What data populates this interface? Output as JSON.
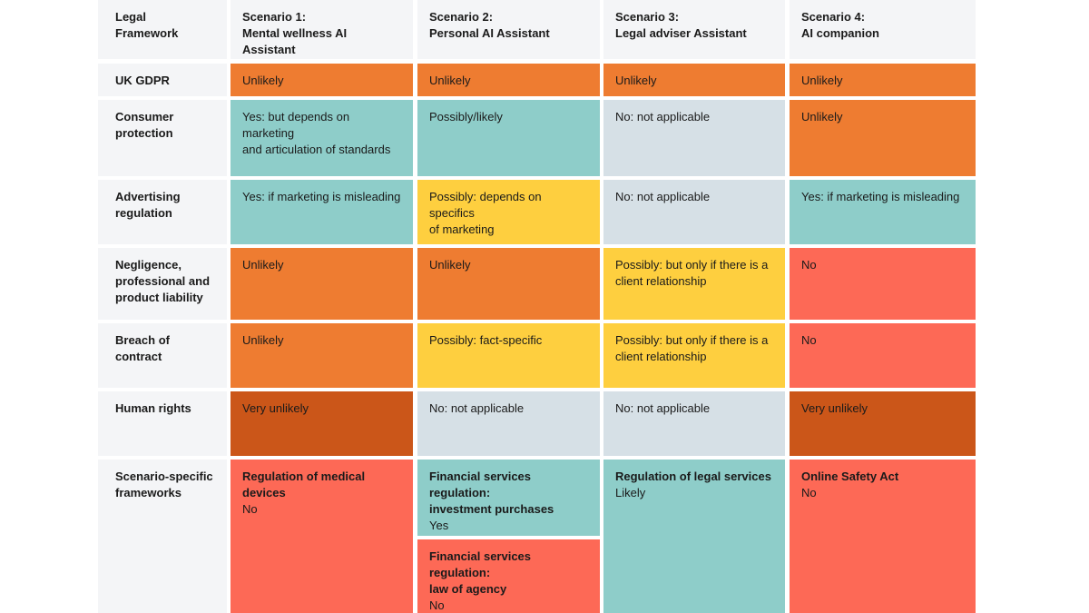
{
  "colors": {
    "header_bg": "#f4f5f7",
    "unlikely": "#ee7c31",
    "very_unlikely": "#cb5619",
    "yes_teal": "#8ecdc9",
    "not_applicable": "#d6e0e6",
    "possibly": "#fecf3f",
    "no": "#fd6956"
  },
  "header": {
    "framework": [
      "Legal",
      "Framework"
    ],
    "scenarios": [
      [
        "Scenario 1:",
        "Mental wellness AI Assistant"
      ],
      [
        "Scenario 2:",
        "Personal AI Assistant"
      ],
      [
        "Scenario 3:",
        "Legal adviser Assistant"
      ],
      [
        "Scenario 4:",
        "AI companion"
      ]
    ]
  },
  "rows": [
    {
      "label": [
        "UK GDPR"
      ],
      "cells": [
        {
          "color": "unlikely",
          "lines": [
            "Unlikely"
          ]
        },
        {
          "color": "unlikely",
          "lines": [
            "Unlikely"
          ]
        },
        {
          "color": "unlikely",
          "lines": [
            "Unlikely"
          ]
        },
        {
          "color": "unlikely",
          "lines": [
            "Unlikely"
          ]
        }
      ]
    },
    {
      "label": [
        "Consumer",
        "protection"
      ],
      "cells": [
        {
          "color": "yes_teal",
          "lines": [
            "Yes: but depends on marketing",
            "and articulation of standards"
          ]
        },
        {
          "color": "yes_teal",
          "lines": [
            "Possibly/likely"
          ]
        },
        {
          "color": "not_applicable",
          "lines": [
            "No: not applicable"
          ]
        },
        {
          "color": "unlikely",
          "lines": [
            "Unlikely"
          ]
        }
      ]
    },
    {
      "label": [
        "Advertising",
        "regulation"
      ],
      "cells": [
        {
          "color": "yes_teal",
          "lines": [
            "Yes: if marketing is misleading"
          ]
        },
        {
          "color": "possibly",
          "lines": [
            "Possibly: depends on specifics",
            "of marketing"
          ]
        },
        {
          "color": "not_applicable",
          "lines": [
            "No: not applicable"
          ]
        },
        {
          "color": "yes_teal",
          "lines": [
            "Yes: if marketing is misleading"
          ]
        }
      ]
    },
    {
      "label": [
        "Negligence,",
        "professional and",
        "product liability"
      ],
      "cells": [
        {
          "color": "unlikely",
          "lines": [
            "Unlikely"
          ]
        },
        {
          "color": "unlikely",
          "lines": [
            "Unlikely"
          ]
        },
        {
          "color": "possibly",
          "lines": [
            "Possibly: but only if there is a",
            "client relationship"
          ]
        },
        {
          "color": "no",
          "lines": [
            "No"
          ]
        }
      ]
    },
    {
      "label": [
        "Breach of",
        "contract"
      ],
      "cells": [
        {
          "color": "unlikely",
          "lines": [
            "Unlikely"
          ]
        },
        {
          "color": "possibly",
          "lines": [
            "Possibly: fact-specific"
          ]
        },
        {
          "color": "possibly",
          "lines": [
            "Possibly: but only if there is a",
            "client relationship"
          ]
        },
        {
          "color": "no",
          "lines": [
            "No"
          ]
        }
      ]
    },
    {
      "label": [
        "Human rights"
      ],
      "cells": [
        {
          "color": "very_unlikely",
          "lines": [
            "Very unlikely"
          ]
        },
        {
          "color": "not_applicable",
          "lines": [
            "No: not applicable"
          ]
        },
        {
          "color": "not_applicable",
          "lines": [
            "No: not applicable"
          ]
        },
        {
          "color": "very_unlikely",
          "lines": [
            "Very unlikely"
          ]
        }
      ]
    },
    {
      "label": [
        "Scenario-specific",
        "frameworks"
      ],
      "cells": [
        {
          "color": "no",
          "title": [
            "Regulation of medical",
            "devices"
          ],
          "value": "No"
        },
        {
          "color": "yes_teal",
          "title": [
            "Financial services regulation:",
            "investment purchases"
          ],
          "value": "Yes"
        },
        {
          "color": "no",
          "title": [
            "Financial services regulation:",
            "law of agency"
          ],
          "value": "No"
        },
        {
          "color": "yes_teal",
          "title": [
            "Regulation of legal services"
          ],
          "value": "Likely"
        },
        {
          "color": "no",
          "title": [
            "Online Safety Act"
          ],
          "value": "No"
        }
      ]
    }
  ]
}
